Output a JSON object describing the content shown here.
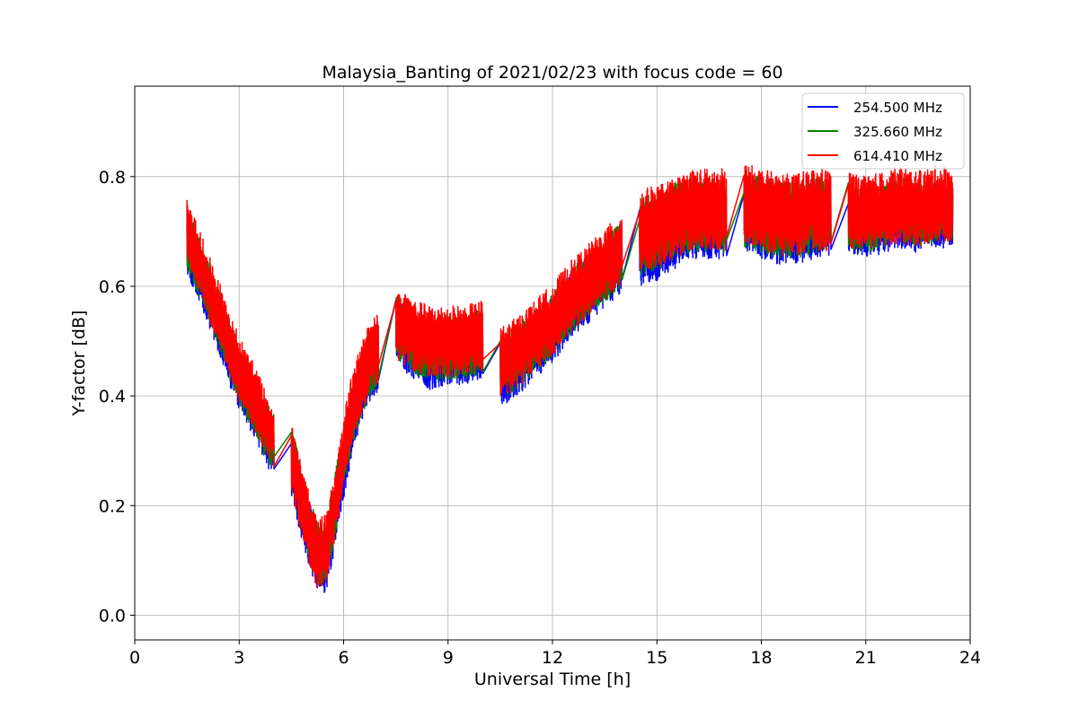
{
  "chart_data": {
    "type": "line",
    "title": "Malaysia_Banting of 2021/02/23 with focus code = 60",
    "xlabel": "Universal Time [h]",
    "ylabel": "Y-factor [dB]",
    "xlim": [
      0,
      24
    ],
    "ylim": [
      -0.045,
      0.965
    ],
    "xticks": [
      0,
      3,
      6,
      9,
      12,
      15,
      18,
      21,
      24
    ],
    "xtick_labels": [
      "0",
      "3",
      "6",
      "9",
      "12",
      "15",
      "18",
      "21",
      "24"
    ],
    "yticks": [
      0.0,
      0.2,
      0.4,
      0.6,
      0.8
    ],
    "ytick_labels": [
      "0.0",
      "0.2",
      "0.4",
      "0.6",
      "0.8"
    ],
    "grid": true,
    "legend": "top-right",
    "series": [
      {
        "name": "254.500 MHz",
        "color": "#0000ff",
        "segments": [
          {
            "x": [
              1.5,
              1.75,
              2.0,
              2.25,
              2.5,
              2.75,
              3.0,
              3.25,
              3.5,
              3.75,
              4.0
            ],
            "center": [
              0.68,
              0.64,
              0.6,
              0.56,
              0.52,
              0.47,
              0.43,
              0.4,
              0.37,
              0.33,
              0.31
            ],
            "amp": 0.055
          },
          {
            "x": [
              4.5,
              4.75,
              5.0,
              5.25,
              5.5,
              5.75,
              6.0,
              6.25,
              6.5,
              6.75,
              7.0
            ],
            "center": [
              0.28,
              0.21,
              0.15,
              0.1,
              0.1,
              0.18,
              0.27,
              0.35,
              0.41,
              0.45,
              0.47
            ],
            "amp": 0.06
          },
          {
            "x": [
              7.5,
              8.0,
              8.5,
              9.0,
              9.5,
              10.0
            ],
            "center": [
              0.52,
              0.49,
              0.47,
              0.48,
              0.48,
              0.49
            ],
            "amp": 0.06
          },
          {
            "x": [
              10.5,
              11.0,
              11.5,
              12.0,
              12.5,
              13.0,
              13.5,
              14.0
            ],
            "center": [
              0.44,
              0.46,
              0.49,
              0.52,
              0.56,
              0.59,
              0.62,
              0.65
            ],
            "amp": 0.06
          },
          {
            "x": [
              14.5,
              15.0,
              15.5,
              16.0,
              16.5,
              17.0
            ],
            "center": [
              0.67,
              0.68,
              0.7,
              0.72,
              0.72,
              0.72
            ],
            "amp": 0.07
          },
          {
            "x": [
              17.5,
              18.0,
              18.5,
              19.0,
              19.5,
              20.0
            ],
            "center": [
              0.73,
              0.72,
              0.71,
              0.71,
              0.72,
              0.72
            ],
            "amp": 0.07
          },
          {
            "x": [
              20.5,
              21.0,
              21.5,
              22.0,
              22.5,
              23.0,
              23.5
            ],
            "center": [
              0.72,
              0.71,
              0.72,
              0.73,
              0.72,
              0.73,
              0.73
            ],
            "amp": 0.06
          }
        ]
      },
      {
        "name": "325.660 MHz",
        "color": "#008000",
        "segments": [
          {
            "x": [
              1.5,
              1.75,
              2.0,
              2.25,
              2.5,
              2.75,
              3.0,
              3.25,
              3.5,
              3.75,
              4.0
            ],
            "center": [
              0.69,
              0.65,
              0.61,
              0.57,
              0.53,
              0.48,
              0.44,
              0.41,
              0.38,
              0.34,
              0.32
            ],
            "amp": 0.055
          },
          {
            "x": [
              4.5,
              4.75,
              5.0,
              5.25,
              5.5,
              5.75,
              6.0,
              6.25,
              6.5,
              6.75,
              7.0
            ],
            "center": [
              0.29,
              0.22,
              0.16,
              0.11,
              0.12,
              0.2,
              0.29,
              0.37,
              0.42,
              0.46,
              0.48
            ],
            "amp": 0.06
          },
          {
            "x": [
              7.5,
              8.0,
              8.5,
              9.0,
              9.5,
              10.0
            ],
            "center": [
              0.53,
              0.5,
              0.48,
              0.49,
              0.49,
              0.5
            ],
            "amp": 0.06
          },
          {
            "x": [
              10.5,
              11.0,
              11.5,
              12.0,
              12.5,
              13.0,
              13.5,
              14.0
            ],
            "center": [
              0.45,
              0.47,
              0.5,
              0.53,
              0.57,
              0.6,
              0.63,
              0.66
            ],
            "amp": 0.06
          },
          {
            "x": [
              14.5,
              15.0,
              15.5,
              16.0,
              16.5,
              17.0
            ],
            "center": [
              0.69,
              0.7,
              0.72,
              0.73,
              0.73,
              0.73
            ],
            "amp": 0.07
          },
          {
            "x": [
              17.5,
              18.0,
              18.5,
              19.0,
              19.5,
              20.0
            ],
            "center": [
              0.74,
              0.73,
              0.72,
              0.72,
              0.73,
              0.73
            ],
            "amp": 0.07
          },
          {
            "x": [
              20.5,
              21.0,
              21.5,
              22.0,
              22.5,
              23.0,
              23.5
            ],
            "center": [
              0.73,
              0.72,
              0.73,
              0.74,
              0.73,
              0.74,
              0.74
            ],
            "amp": 0.06
          }
        ]
      },
      {
        "name": "614.410 MHz",
        "color": "#ff0000",
        "segments": [
          {
            "x": [
              1.5,
              1.75,
              2.0,
              2.25,
              2.5,
              2.75,
              3.0,
              3.25,
              3.5,
              3.75,
              4.0
            ],
            "center": [
              0.7,
              0.66,
              0.62,
              0.58,
              0.54,
              0.49,
              0.45,
              0.42,
              0.39,
              0.35,
              0.33
            ],
            "amp": 0.06
          },
          {
            "x": [
              4.5,
              4.75,
              5.0,
              5.25,
              5.5,
              5.75,
              6.0,
              6.25,
              6.5,
              6.75,
              7.0
            ],
            "center": [
              0.29,
              0.22,
              0.16,
              0.11,
              0.12,
              0.2,
              0.3,
              0.38,
              0.43,
              0.47,
              0.49
            ],
            "amp": 0.065
          },
          {
            "x": [
              7.5,
              8.0,
              8.5,
              9.0,
              9.5,
              10.0
            ],
            "center": [
              0.53,
              0.51,
              0.5,
              0.5,
              0.5,
              0.51
            ],
            "amp": 0.065
          },
          {
            "x": [
              10.5,
              11.0,
              11.5,
              12.0,
              12.5,
              13.0,
              13.5,
              14.0
            ],
            "center": [
              0.46,
              0.48,
              0.51,
              0.54,
              0.58,
              0.61,
              0.64,
              0.67
            ],
            "amp": 0.065
          },
          {
            "x": [
              14.5,
              15.0,
              15.5,
              16.0,
              16.5,
              17.0
            ],
            "center": [
              0.7,
              0.71,
              0.72,
              0.74,
              0.74,
              0.74
            ],
            "amp": 0.075
          },
          {
            "x": [
              17.5,
              18.0,
              18.5,
              19.0,
              19.5,
              20.0
            ],
            "center": [
              0.75,
              0.74,
              0.73,
              0.73,
              0.74,
              0.74
            ],
            "amp": 0.075
          },
          {
            "x": [
              20.5,
              21.0,
              21.5,
              22.0,
              22.5,
              23.0,
              23.5
            ],
            "center": [
              0.74,
              0.73,
              0.74,
              0.75,
              0.74,
              0.75,
              0.75
            ],
            "amp": 0.07
          }
        ]
      }
    ]
  }
}
